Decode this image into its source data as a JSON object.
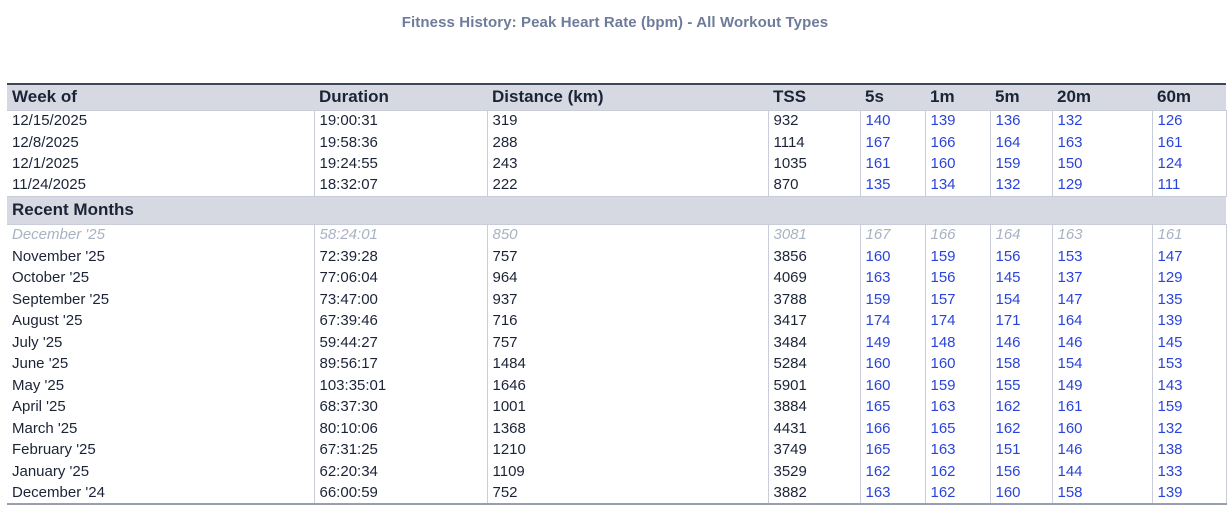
{
  "title": "Fitness History: Peak Heart Rate (bpm) - All Workout Types",
  "table": {
    "columns": [
      "Week of",
      "Duration",
      "Distance (km)",
      "TSS",
      "5s",
      "1m",
      "5m",
      "20m",
      "60m"
    ],
    "section_label": "Recent Months",
    "weekly_rows": [
      {
        "label": "12/15/2025",
        "duration": "19:00:31",
        "distance": "319",
        "tss": "932",
        "peaks": [
          "140",
          "139",
          "136",
          "132",
          "126"
        ]
      },
      {
        "label": "12/8/2025",
        "duration": "19:58:36",
        "distance": "288",
        "tss": "1114",
        "peaks": [
          "167",
          "166",
          "164",
          "163",
          "161"
        ]
      },
      {
        "label": "12/1/2025",
        "duration": "19:24:55",
        "distance": "243",
        "tss": "1035",
        "peaks": [
          "161",
          "160",
          "159",
          "150",
          "124"
        ]
      },
      {
        "label": "11/24/2025",
        "duration": "18:32:07",
        "distance": "222",
        "tss": "870",
        "peaks": [
          "135",
          "134",
          "132",
          "129",
          "111"
        ]
      }
    ],
    "monthly_rows": [
      {
        "label": "December '25",
        "duration": "58:24:01",
        "distance": "850",
        "tss": "3081",
        "peaks": [
          "167",
          "166",
          "164",
          "163",
          "161"
        ],
        "muted": true
      },
      {
        "label": "November '25",
        "duration": "72:39:28",
        "distance": "757",
        "tss": "3856",
        "peaks": [
          "160",
          "159",
          "156",
          "153",
          "147"
        ]
      },
      {
        "label": "October '25",
        "duration": "77:06:04",
        "distance": "964",
        "tss": "4069",
        "peaks": [
          "163",
          "156",
          "145",
          "137",
          "129"
        ]
      },
      {
        "label": "September '25",
        "duration": "73:47:00",
        "distance": "937",
        "tss": "3788",
        "peaks": [
          "159",
          "157",
          "154",
          "147",
          "135"
        ]
      },
      {
        "label": "August '25",
        "duration": "67:39:46",
        "distance": "716",
        "tss": "3417",
        "peaks": [
          "174",
          "174",
          "171",
          "164",
          "139"
        ]
      },
      {
        "label": "July '25",
        "duration": "59:44:27",
        "distance": "757",
        "tss": "3484",
        "peaks": [
          "149",
          "148",
          "146",
          "146",
          "145"
        ]
      },
      {
        "label": "June '25",
        "duration": "89:56:17",
        "distance": "1484",
        "tss": "5284",
        "peaks": [
          "160",
          "160",
          "158",
          "154",
          "153"
        ]
      },
      {
        "label": "May '25",
        "duration": "103:35:01",
        "distance": "1646",
        "tss": "5901",
        "peaks": [
          "160",
          "159",
          "155",
          "149",
          "143"
        ]
      },
      {
        "label": "April '25",
        "duration": "68:37:30",
        "distance": "1001",
        "tss": "3884",
        "peaks": [
          "165",
          "163",
          "162",
          "161",
          "159"
        ]
      },
      {
        "label": "March '25",
        "duration": "80:10:06",
        "distance": "1368",
        "tss": "4431",
        "peaks": [
          "166",
          "165",
          "162",
          "160",
          "132"
        ]
      },
      {
        "label": "February '25",
        "duration": "67:31:25",
        "distance": "1210",
        "tss": "3749",
        "peaks": [
          "165",
          "163",
          "151",
          "146",
          "138"
        ]
      },
      {
        "label": "January '25",
        "duration": "62:20:34",
        "distance": "1109",
        "tss": "3529",
        "peaks": [
          "162",
          "162",
          "156",
          "144",
          "133"
        ]
      },
      {
        "label": "December '24",
        "duration": "66:00:59",
        "distance": "752",
        "tss": "3882",
        "peaks": [
          "163",
          "162",
          "160",
          "158",
          "139"
        ]
      }
    ]
  },
  "colors": {
    "title_text": "#6e7c9b",
    "header_bg": "#d6d9e2",
    "dark_text": "#1b2437",
    "link_blue": "#2b44d8",
    "muted_text": "#a9b2c3",
    "grid_line": "#c9cdd9",
    "table_top_border": "#3e4659",
    "table_bottom_border": "#98a0b0"
  }
}
